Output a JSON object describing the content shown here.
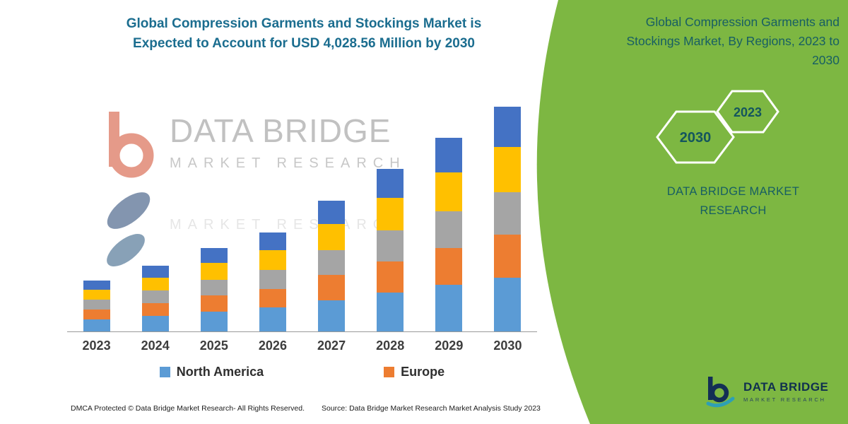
{
  "title": {
    "line1": "Global Compression Garments and Stockings Market is",
    "line2": "Expected to Account for USD 4,028.56 Million by 2030"
  },
  "chart_data": {
    "type": "bar",
    "stacked": true,
    "title": "Global Compression Garments and Stockings Market is Expected to Account for USD 4,028.56 Million by 2030",
    "unit": "USD Million",
    "categories": [
      "2023",
      "2024",
      "2025",
      "2026",
      "2027",
      "2028",
      "2029",
      "2030"
    ],
    "series": [
      {
        "name": "North America",
        "color": "#5b9bd5",
        "values": [
          218.9,
          282.7,
          358.8,
          425.8,
          562.6,
          699.4,
          833.3,
          966.9
        ]
      },
      {
        "name": "Europe",
        "color": "#ed7d31",
        "values": [
          173.3,
          223.8,
          284.1,
          337.1,
          445.4,
          553.7,
          659.7,
          765.4
        ]
      },
      {
        "name": "(unlabeled gray)",
        "color": "#a5a5a5",
        "values": [
          173.3,
          223.8,
          284.1,
          337.1,
          445.4,
          553.7,
          659.7,
          765.4
        ]
      },
      {
        "name": "(unlabeled yellow)",
        "color": "#ffc000",
        "values": [
          182.4,
          235.6,
          299.0,
          354.8,
          468.8,
          582.8,
          694.4,
          805.7
        ]
      },
      {
        "name": "(unlabeled dark blue)",
        "color": "#4472c4",
        "values": [
          164.2,
          212.0,
          269.1,
          319.3,
          421.9,
          524.5,
          625.0,
          725.1
        ]
      }
    ],
    "totals": [
      912,
      1178,
      1495,
      1774,
      2344,
      2914,
      3472,
      4028.56
    ],
    "ylim": [
      0,
      4300
    ],
    "grid": false,
    "legend_position": "bottom",
    "xlabel": "",
    "ylabel": ""
  },
  "legend": [
    {
      "label": "North America",
      "color": "#5b9bd5"
    },
    {
      "label": "Europe",
      "color": "#ed7d31"
    }
  ],
  "watermark": {
    "line1": "DATA BRIDGE",
    "line2": "MARKET RESEARCH"
  },
  "footer": {
    "left": "DMCA Protected © Data Bridge Market Research-  All Rights Reserved.",
    "source": "Source: Data Bridge Market Research  Market Analysis Study 2023"
  },
  "side_panel": {
    "bg_color": "#7db742",
    "heading_lines": [
      "Global Compression Garments and",
      "Stockings Market, By Regions, 2023 to",
      "2030"
    ],
    "hexagons": [
      {
        "label": "2030"
      },
      {
        "label": "2023"
      }
    ],
    "brand_line1": "DATA BRIDGE MARKET",
    "brand_line2": "RESEARCH",
    "logo": {
      "name": "DATA BRIDGE",
      "sub": "MARKET RESEARCH"
    }
  }
}
